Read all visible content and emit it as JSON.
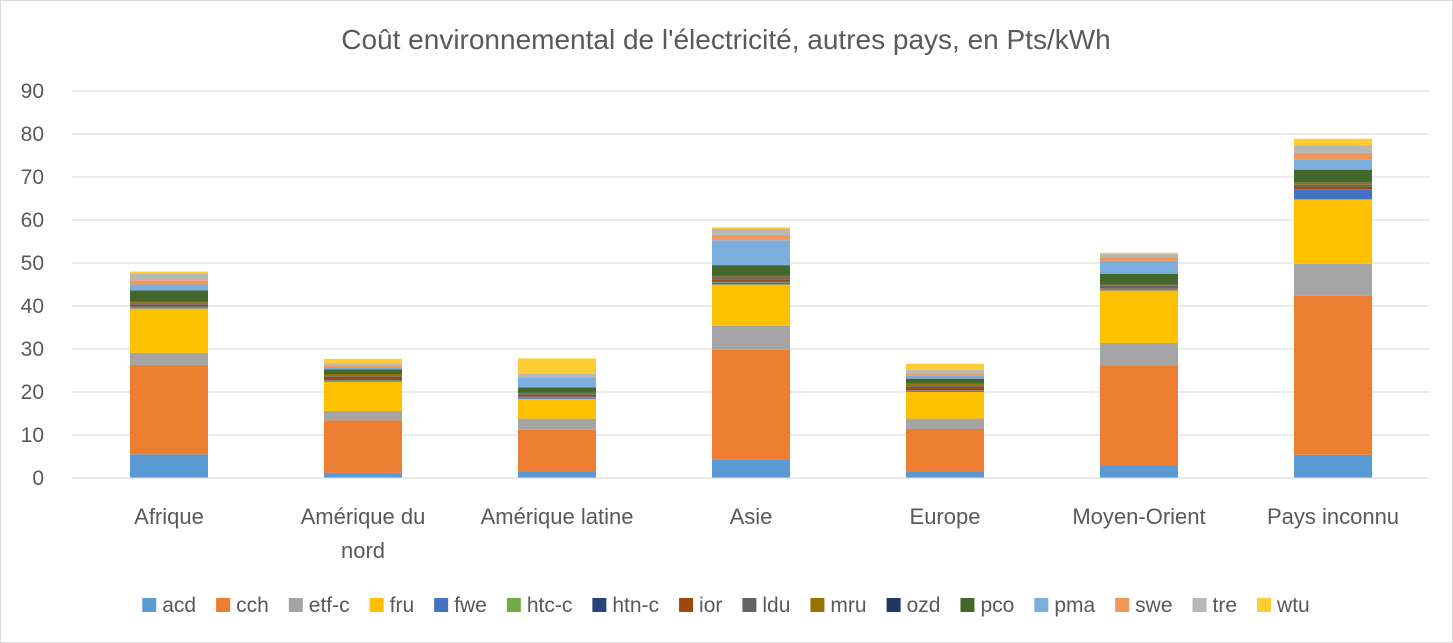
{
  "chart_data": {
    "type": "bar",
    "stacked": true,
    "title": "Coût environnemental de l'électricité, autres pays, en Pts/kWh",
    "xlabel": "",
    "ylabel": "",
    "ylim": [
      0,
      90
    ],
    "yticks": [
      0,
      10,
      20,
      30,
      40,
      50,
      60,
      70,
      80,
      90
    ],
    "grid": true,
    "legend_position": "bottom",
    "categories": [
      "Afrique",
      "Amérique du nord",
      "Amérique latine",
      "Asie",
      "Europe",
      "Moyen-Orient",
      "Pays inconnu"
    ],
    "series": [
      {
        "name": "acd",
        "color": "#5b9bd5",
        "values": [
          5.5,
          1.2,
          1.6,
          4.2,
          1.4,
          3.0,
          5.4
        ]
      },
      {
        "name": "cch",
        "color": "#ed7d31",
        "values": [
          20.8,
          12.2,
          9.6,
          25.6,
          10.0,
          23.2,
          37.0
        ]
      },
      {
        "name": "etf-c",
        "color": "#a5a5a5",
        "values": [
          2.8,
          2.2,
          2.6,
          5.6,
          2.4,
          5.2,
          7.4
        ]
      },
      {
        "name": "fru",
        "color": "#ffc000",
        "values": [
          10.3,
          6.8,
          4.6,
          9.6,
          6.2,
          12.2,
          15.0
        ]
      },
      {
        "name": "fwe",
        "color": "#4472c4",
        "values": [
          0.3,
          0.2,
          0.3,
          0.4,
          0.2,
          0.3,
          2.2
        ]
      },
      {
        "name": "htc-c",
        "color": "#70ad47",
        "values": [
          0.1,
          0.1,
          0.1,
          0.1,
          0.1,
          0.1,
          0.1
        ]
      },
      {
        "name": "htn-c",
        "color": "#264478",
        "values": [
          0.1,
          0.1,
          0.1,
          0.1,
          0.1,
          0.1,
          0.1
        ]
      },
      {
        "name": "ior",
        "color": "#9e480e",
        "values": [
          0.4,
          0.7,
          0.4,
          0.5,
          0.8,
          0.3,
          0.5
        ]
      },
      {
        "name": "ldu",
        "color": "#636363",
        "values": [
          0.3,
          0.2,
          0.2,
          0.4,
          0.2,
          0.3,
          0.5
        ]
      },
      {
        "name": "mru",
        "color": "#997300",
        "values": [
          0.3,
          0.5,
          0.2,
          0.4,
          0.5,
          0.3,
          0.5
        ]
      },
      {
        "name": "ozd",
        "color": "#1f3864",
        "values": [
          0.1,
          0.1,
          0.1,
          0.1,
          0.1,
          0.1,
          0.1
        ]
      },
      {
        "name": "pco",
        "color": "#43682b",
        "values": [
          2.6,
          1.0,
          1.3,
          2.5,
          1.1,
          2.4,
          2.9
        ]
      },
      {
        "name": "pma",
        "color": "#7cafdd",
        "values": [
          1.4,
          0.5,
          2.2,
          5.8,
          0.8,
          3.0,
          2.3
        ]
      },
      {
        "name": "swe",
        "color": "#f1975a",
        "values": [
          1.0,
          0.3,
          0.2,
          1.2,
          0.3,
          0.8,
          1.6
        ]
      },
      {
        "name": "tre",
        "color": "#b7b7b7",
        "values": [
          1.6,
          0.5,
          0.7,
          1.4,
          0.9,
          0.8,
          1.8
        ]
      },
      {
        "name": "wtu",
        "color": "#ffcd33",
        "values": [
          0.4,
          1.1,
          3.6,
          0.4,
          1.5,
          0.3,
          1.5
        ]
      }
    ]
  }
}
